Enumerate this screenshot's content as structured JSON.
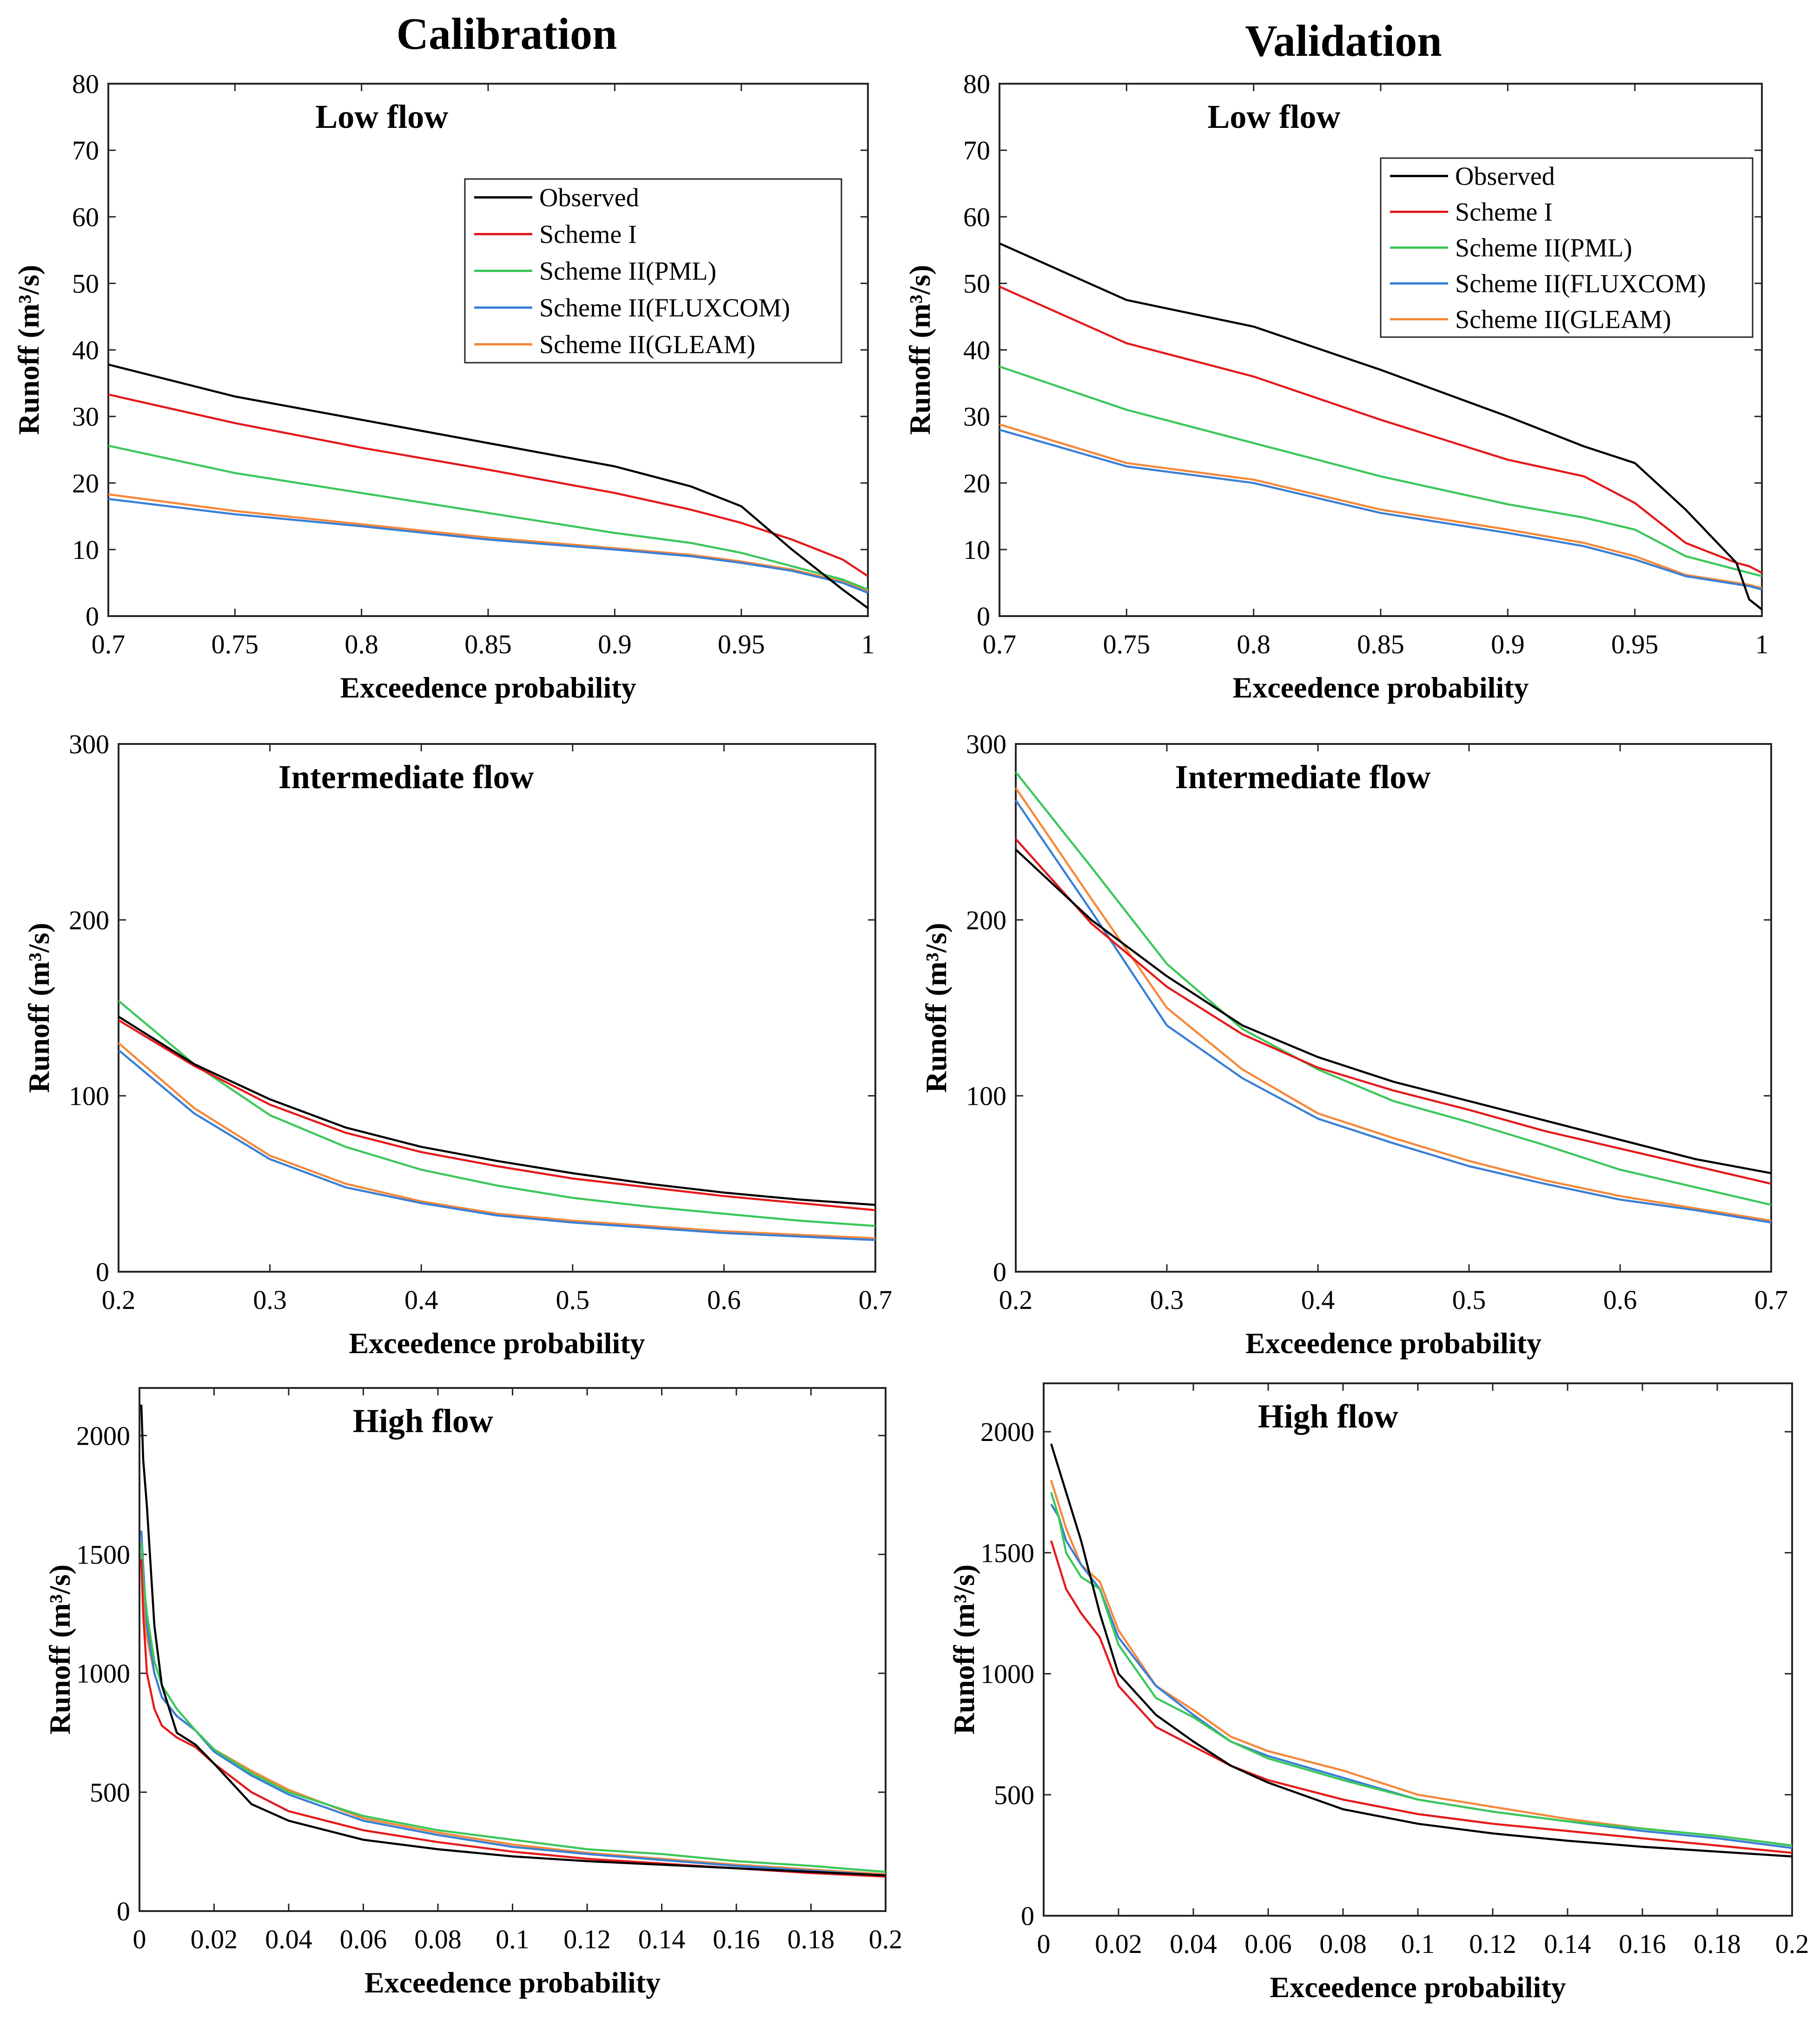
{
  "column_titles": [
    "Calibration",
    "Validation"
  ],
  "legend": [
    {
      "name": "Observed",
      "color": "#000000"
    },
    {
      "name": "Scheme I",
      "color": "#e41a1c"
    },
    {
      "name": "Scheme II(PML)",
      "color": "#3cc75a"
    },
    {
      "name": "Scheme II(FLUXCOM)",
      "color": "#3a7fd5"
    },
    {
      "name": "Scheme II(GLEAM)",
      "color": "#f5883a"
    }
  ],
  "chart_data": [
    {
      "type": "line",
      "column": "Calibration",
      "title": "Low flow",
      "xlabel": "Exceedence probability",
      "ylabel": "Runoff (m³/s)",
      "xlim": [
        0.7,
        1.0
      ],
      "ylim": [
        0,
        80
      ],
      "xticks": [
        0.7,
        0.75,
        0.8,
        0.85,
        0.9,
        0.95,
        1
      ],
      "xtick_labels": [
        "0.7",
        "0.75",
        "0.8",
        "0.85",
        "0.9",
        "0.95",
        "1"
      ],
      "yticks": [
        0,
        10,
        20,
        30,
        40,
        50,
        60,
        70,
        80
      ],
      "ytick_labels": [
        "0",
        "10",
        "20",
        "30",
        "40",
        "50",
        "60",
        "70",
        "80"
      ],
      "legend_position": "upper-right",
      "x": [
        0.7,
        0.75,
        0.8,
        0.85,
        0.9,
        0.93,
        0.95,
        0.97,
        0.99,
        1.0
      ],
      "series": [
        {
          "name": "Observed",
          "values": [
            37.8,
            33,
            29.5,
            26,
            22.5,
            19.5,
            16.5,
            10,
            4,
            1.2
          ]
        },
        {
          "name": "Scheme I",
          "values": [
            33.3,
            29,
            25.3,
            22,
            18.5,
            16,
            14,
            11.5,
            8.5,
            6
          ]
        },
        {
          "name": "Scheme II(PML)",
          "values": [
            25.6,
            21.5,
            18.5,
            15.5,
            12.5,
            11,
            9.5,
            7.5,
            5.5,
            4
          ]
        },
        {
          "name": "Scheme II(FLUXCOM)",
          "values": [
            17.6,
            15.3,
            13.5,
            11.5,
            10,
            9,
            8,
            6.8,
            5,
            3.5
          ]
        },
        {
          "name": "Scheme II(GLEAM)",
          "values": [
            18.3,
            15.8,
            13.8,
            11.8,
            10.2,
            9.2,
            8.2,
            7,
            5.2,
            3.7
          ]
        }
      ]
    },
    {
      "type": "line",
      "column": "Validation",
      "title": "Low flow",
      "xlabel": "Exceedence probability",
      "ylabel": "Runoff (m³/s)",
      "xlim": [
        0.7,
        1.0
      ],
      "ylim": [
        0,
        80
      ],
      "xticks": [
        0.7,
        0.75,
        0.8,
        0.85,
        0.9,
        0.95,
        1
      ],
      "xtick_labels": [
        "0.7",
        "0.75",
        "0.8",
        "0.85",
        "0.9",
        "0.95",
        "1"
      ],
      "yticks": [
        0,
        10,
        20,
        30,
        40,
        50,
        60,
        70,
        80
      ],
      "ytick_labels": [
        "0",
        "10",
        "20",
        "30",
        "40",
        "50",
        "60",
        "70",
        "80"
      ],
      "legend_position": "upper-right",
      "x": [
        0.7,
        0.75,
        0.8,
        0.85,
        0.9,
        0.93,
        0.95,
        0.97,
        0.99,
        0.995,
        1.0
      ],
      "series": [
        {
          "name": "Observed",
          "values": [
            56,
            47.5,
            43.5,
            37,
            30,
            25.5,
            23,
            16,
            8,
            2.5,
            1
          ]
        },
        {
          "name": "Scheme I",
          "values": [
            49.5,
            41,
            36,
            29.5,
            23.5,
            21,
            17,
            11,
            8,
            7.5,
            6.5
          ]
        },
        {
          "name": "Scheme II(PML)",
          "values": [
            37.5,
            31,
            26,
            21,
            16.8,
            14.8,
            13,
            9,
            7,
            6.5,
            6
          ]
        },
        {
          "name": "Scheme II(FLUXCOM)",
          "values": [
            28,
            22.5,
            20,
            15.5,
            12.5,
            10.5,
            8.5,
            6,
            4.8,
            4.5,
            4
          ]
        },
        {
          "name": "Scheme II(GLEAM)",
          "values": [
            28.8,
            23,
            20.5,
            16,
            13,
            11,
            9,
            6.2,
            5,
            4.7,
            4.2
          ]
        }
      ]
    },
    {
      "type": "line",
      "column": "Calibration",
      "title": "Intermediate flow",
      "xlabel": "Exceedence probability",
      "ylabel": "Runoff (m³/s)",
      "xlim": [
        0.2,
        0.7
      ],
      "ylim": [
        0,
        300
      ],
      "xticks": [
        0.2,
        0.3,
        0.4,
        0.5,
        0.6,
        0.7
      ],
      "xtick_labels": [
        "0.2",
        "0.3",
        "0.4",
        "0.5",
        "0.6",
        "0.7"
      ],
      "yticks": [
        0,
        100,
        200,
        300
      ],
      "ytick_labels": [
        "0",
        "100",
        "200",
        "300"
      ],
      "x": [
        0.2,
        0.25,
        0.3,
        0.35,
        0.4,
        0.45,
        0.5,
        0.55,
        0.6,
        0.65,
        0.7
      ],
      "series": [
        {
          "name": "Observed",
          "values": [
            145,
            118,
            98,
            82,
            71,
            63,
            56,
            50,
            45,
            41,
            38
          ]
        },
        {
          "name": "Scheme I",
          "values": [
            143,
            117,
            95,
            79,
            68,
            60,
            53,
            48,
            43,
            39,
            35
          ]
        },
        {
          "name": "Scheme II(PML)",
          "values": [
            154,
            118,
            89,
            71,
            58,
            49,
            42,
            37,
            33,
            29,
            26
          ]
        },
        {
          "name": "Scheme II(FLUXCOM)",
          "values": [
            126,
            90,
            64,
            48,
            39,
            32,
            28,
            25,
            22,
            20,
            18
          ]
        },
        {
          "name": "Scheme II(GLEAM)",
          "values": [
            130,
            93,
            66,
            50,
            40,
            33,
            29,
            26,
            23,
            21,
            19
          ]
        }
      ]
    },
    {
      "type": "line",
      "column": "Validation",
      "title": "Intermediate flow",
      "xlabel": "Exceedence probability",
      "ylabel": "Runoff (m³/s)",
      "xlim": [
        0.2,
        0.7
      ],
      "ylim": [
        0,
        300
      ],
      "xticks": [
        0.2,
        0.3,
        0.4,
        0.5,
        0.6,
        0.7
      ],
      "xtick_labels": [
        "0.2",
        "0.3",
        "0.4",
        "0.5",
        "0.6",
        "0.7"
      ],
      "yticks": [
        0,
        100,
        200,
        300
      ],
      "ytick_labels": [
        "0",
        "100",
        "200",
        "300"
      ],
      "x": [
        0.2,
        0.25,
        0.3,
        0.35,
        0.4,
        0.45,
        0.5,
        0.55,
        0.6,
        0.65,
        0.7
      ],
      "series": [
        {
          "name": "Observed",
          "values": [
            240,
            200,
            168,
            140,
            122,
            108,
            97,
            86,
            75,
            64,
            56
          ]
        },
        {
          "name": "Scheme I",
          "values": [
            246,
            198,
            162,
            135,
            116,
            103,
            92,
            80,
            70,
            60,
            50
          ]
        },
        {
          "name": "Scheme II(PML)",
          "values": [
            284,
            230,
            175,
            138,
            115,
            97,
            85,
            72,
            58,
            48,
            38
          ]
        },
        {
          "name": "Scheme II(FLUXCOM)",
          "values": [
            268,
            205,
            140,
            110,
            87,
            73,
            60,
            50,
            41,
            35,
            28
          ]
        },
        {
          "name": "Scheme II(GLEAM)",
          "values": [
            275,
            212,
            150,
            115,
            90,
            76,
            63,
            52,
            43,
            36,
            29
          ]
        }
      ]
    },
    {
      "type": "line",
      "column": "Calibration",
      "title": "High flow",
      "xlabel": "Exceedence probability",
      "ylabel": "Runoff (m³/s)",
      "xlim": [
        0,
        0.2
      ],
      "ylim": [
        0,
        2200
      ],
      "xticks": [
        0,
        0.02,
        0.04,
        0.06,
        0.08,
        0.1,
        0.12,
        0.14,
        0.16,
        0.18,
        0.2
      ],
      "xtick_labels": [
        "0",
        "0.02",
        "0.04",
        "0.06",
        "0.08",
        "0.1",
        "0.12",
        "0.14",
        "0.16",
        "0.18",
        "0.2"
      ],
      "yticks": [
        0,
        500,
        1000,
        1500,
        2000
      ],
      "ytick_labels": [
        "0",
        "500",
        "1000",
        "1500",
        "2000"
      ],
      "x": [
        0.0005,
        0.001,
        0.002,
        0.004,
        0.006,
        0.01,
        0.015,
        0.02,
        0.03,
        0.04,
        0.06,
        0.08,
        0.1,
        0.12,
        0.14,
        0.16,
        0.18,
        0.2
      ],
      "series": [
        {
          "name": "Observed",
          "values": [
            2130,
            1900,
            1700,
            1200,
            950,
            750,
            700,
            620,
            450,
            380,
            300,
            260,
            230,
            210,
            195,
            180,
            165,
            150
          ]
        },
        {
          "name": "Scheme I",
          "values": [
            1480,
            1250,
            1000,
            850,
            780,
            730,
            690,
            620,
            500,
            420,
            340,
            290,
            250,
            220,
            200,
            180,
            160,
            145
          ]
        },
        {
          "name": "Scheme II(PML)",
          "values": [
            1550,
            1400,
            1250,
            1050,
            950,
            850,
            760,
            680,
            580,
            500,
            400,
            340,
            300,
            260,
            240,
            210,
            190,
            165
          ]
        },
        {
          "name": "Scheme II(FLUXCOM)",
          "values": [
            1600,
            1450,
            1200,
            1000,
            900,
            820,
            760,
            670,
            570,
            490,
            380,
            320,
            270,
            240,
            215,
            190,
            170,
            150
          ]
        },
        {
          "name": "Scheme II(GLEAM)",
          "values": [
            1500,
            1350,
            1150,
            1000,
            900,
            820,
            760,
            680,
            590,
            510,
            390,
            330,
            280,
            245,
            220,
            195,
            175,
            155
          ]
        }
      ]
    },
    {
      "type": "line",
      "column": "Validation",
      "title": "High flow",
      "xlabel": "Exceedence probability",
      "ylabel": "Runoff (m³/s)",
      "xlim": [
        0,
        0.2
      ],
      "ylim": [
        0,
        2200
      ],
      "xticks": [
        0,
        0.02,
        0.04,
        0.06,
        0.08,
        0.1,
        0.12,
        0.14,
        0.16,
        0.18,
        0.2
      ],
      "xtick_labels": [
        "0",
        "0.02",
        "0.04",
        "0.06",
        "0.08",
        "0.1",
        "0.12",
        "0.14",
        "0.16",
        "0.18",
        "0.2"
      ],
      "yticks": [
        0,
        500,
        1000,
        1500,
        2000
      ],
      "ytick_labels": [
        "0",
        "500",
        "1000",
        "1500",
        "2000"
      ],
      "x": [
        0.002,
        0.004,
        0.006,
        0.01,
        0.015,
        0.02,
        0.03,
        0.04,
        0.05,
        0.06,
        0.08,
        0.1,
        0.12,
        0.14,
        0.16,
        0.18,
        0.2
      ],
      "series": [
        {
          "name": "Observed",
          "values": [
            1950,
            1850,
            1750,
            1550,
            1250,
            1000,
            830,
            720,
            620,
            550,
            440,
            380,
            340,
            310,
            285,
            265,
            245
          ]
        },
        {
          "name": "Scheme I",
          "values": [
            1550,
            1450,
            1350,
            1250,
            1150,
            950,
            780,
            700,
            620,
            560,
            480,
            420,
            380,
            350,
            320,
            290,
            260
          ]
        },
        {
          "name": "Scheme II(PML)",
          "values": [
            1750,
            1650,
            1500,
            1400,
            1350,
            1120,
            900,
            820,
            720,
            650,
            560,
            480,
            430,
            390,
            360,
            330,
            290
          ]
        },
        {
          "name": "Scheme II(FLUXCOM)",
          "values": [
            1700,
            1650,
            1550,
            1450,
            1350,
            1150,
            950,
            830,
            720,
            660,
            570,
            480,
            430,
            390,
            350,
            320,
            280
          ]
        },
        {
          "name": "Scheme II(GLEAM)",
          "values": [
            1800,
            1700,
            1600,
            1450,
            1380,
            1180,
            950,
            850,
            740,
            680,
            600,
            500,
            450,
            400,
            360,
            330,
            290
          ]
        }
      ]
    }
  ]
}
